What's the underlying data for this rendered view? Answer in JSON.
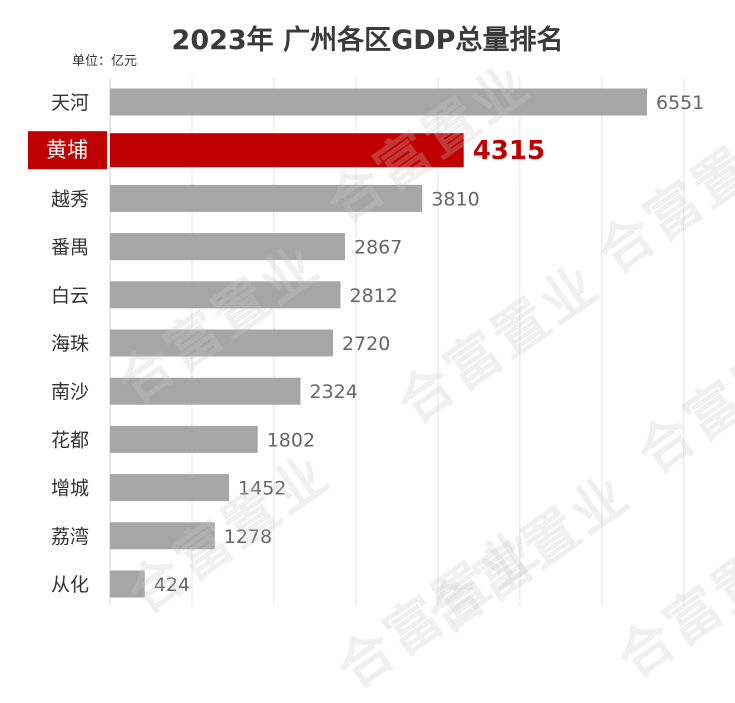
{
  "chart_data": {
    "type": "bar",
    "orientation": "horizontal",
    "title": "2023年  广州各区GDP总量排名",
    "unit_label": "单位：亿元",
    "categories": [
      "天河",
      "黄埔",
      "越秀",
      "番禺",
      "白云",
      "海珠",
      "南沙",
      "花都",
      "增城",
      "荔湾",
      "从化"
    ],
    "values": [
      6551,
      4315,
      3810,
      2867,
      2812,
      2720,
      2324,
      1802,
      1452,
      1278,
      424
    ],
    "highlight_category": "黄埔",
    "xlim": [
      0,
      7000
    ],
    "grid": true,
    "colors": {
      "bar": "#a6a6a6",
      "highlight": "#c00000",
      "label": "#666666",
      "highlight_label": "#c00000"
    }
  },
  "watermark_text": "合富置业"
}
